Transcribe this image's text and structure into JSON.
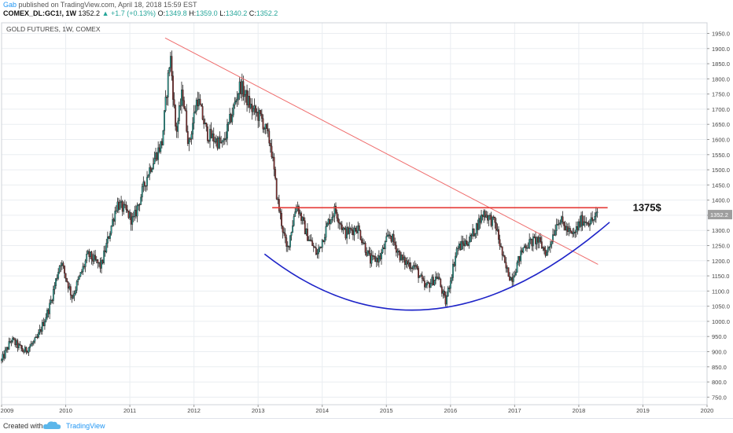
{
  "header": {
    "author": "Gab",
    "published": "published on TradingView.com, April 18, 2018 15:59 EST",
    "symbol": "COMEX_DL:GC1!, 1W",
    "last": "1352.2",
    "change": "+1.7 (+0.13%)",
    "open_label": "O:",
    "open": "1349.8",
    "high_label": "H:",
    "high": "1359.0",
    "low_label": "L:",
    "low": "1340.2",
    "close_label": "C:",
    "close": "1352.2"
  },
  "footer": {
    "created_with": "Created with",
    "brand": "TradingView"
  },
  "chart_data": {
    "type": "candlestick",
    "title": "GOLD FUTURES, 1W, COMEX",
    "x_ticks": [
      "2009",
      "2010",
      "2011",
      "2012",
      "2013",
      "2014",
      "2015",
      "2016",
      "2017",
      "2018",
      "2019",
      "2020"
    ],
    "x_range": [
      2009.0,
      2020.0
    ],
    "y_range": [
      725,
      1985
    ],
    "y_ticks": [
      750,
      800,
      850,
      900,
      950,
      1000,
      1050,
      1100,
      1150,
      1200,
      1250,
      1300,
      1350,
      1400,
      1450,
      1500,
      1550,
      1600,
      1650,
      1700,
      1750,
      1800,
      1850,
      1900,
      1950
    ],
    "y_tick_labels": [
      "750.0",
      "800.0",
      "850.0",
      "900.0",
      "950.0",
      "1000.0",
      "1050.0",
      "1100.0",
      "1150.0",
      "1200.0",
      "1250.0",
      "1300.0",
      "1350.0",
      "1400.0",
      "1450.0",
      "1500.0",
      "1550.0",
      "1600.0",
      "1650.0",
      "1700.0",
      "1750.0",
      "1800.0",
      "1850.0",
      "1900.0",
      "1950.0"
    ],
    "price_path": [
      [
        2009.0,
        870
      ],
      [
        2009.15,
        940
      ],
      [
        2009.35,
        900
      ],
      [
        2009.55,
        940
      ],
      [
        2009.75,
        1050
      ],
      [
        2009.92,
        1200
      ],
      [
        2010.1,
        1080
      ],
      [
        2010.35,
        1220
      ],
      [
        2010.55,
        1180
      ],
      [
        2010.8,
        1390
      ],
      [
        2010.95,
        1360
      ],
      [
        2011.05,
        1330
      ],
      [
        2011.3,
        1500
      ],
      [
        2011.5,
        1590
      ],
      [
        2011.63,
        1880
      ],
      [
        2011.72,
        1620
      ],
      [
        2011.82,
        1760
      ],
      [
        2011.92,
        1580
      ],
      [
        2012.05,
        1740
      ],
      [
        2012.2,
        1620
      ],
      [
        2012.45,
        1580
      ],
      [
        2012.72,
        1780
      ],
      [
        2012.9,
        1700
      ],
      [
        2013.05,
        1670
      ],
      [
        2013.2,
        1580
      ],
      [
        2013.3,
        1400
      ],
      [
        2013.45,
        1230
      ],
      [
        2013.6,
        1390
      ],
      [
        2013.75,
        1290
      ],
      [
        2013.92,
        1220
      ],
      [
        2014.1,
        1330
      ],
      [
        2014.2,
        1370
      ],
      [
        2014.35,
        1290
      ],
      [
        2014.55,
        1310
      ],
      [
        2014.75,
        1200
      ],
      [
        2014.9,
        1210
      ],
      [
        2015.05,
        1290
      ],
      [
        2015.25,
        1200
      ],
      [
        2015.45,
        1180
      ],
      [
        2015.6,
        1110
      ],
      [
        2015.8,
        1150
      ],
      [
        2015.92,
        1060
      ],
      [
        2016.1,
        1240
      ],
      [
        2016.3,
        1270
      ],
      [
        2016.52,
        1360
      ],
      [
        2016.7,
        1320
      ],
      [
        2016.85,
        1180
      ],
      [
        2016.95,
        1140
      ],
      [
        2017.15,
        1250
      ],
      [
        2017.35,
        1270
      ],
      [
        2017.5,
        1225
      ],
      [
        2017.68,
        1340
      ],
      [
        2017.9,
        1280
      ],
      [
        2018.05,
        1335
      ],
      [
        2018.2,
        1330
      ],
      [
        2018.3,
        1352
      ]
    ],
    "last_price": 1352.2,
    "last_price_label": "1352.2",
    "resistance": {
      "level": 1375,
      "x_start": 2013.22,
      "x_end": 2018.45,
      "label": "1375$"
    },
    "trendline": {
      "from": [
        2011.55,
        1935
      ],
      "to": [
        2018.3,
        1188
      ]
    },
    "support_curve": {
      "from": [
        2013.1,
        1222
      ],
      "bottom": [
        2015.7,
        1040
      ],
      "to": [
        2018.48,
        1327
      ]
    },
    "colors": {
      "up": "#26a69a",
      "down": "#8b2e2e",
      "wick": "#222222",
      "resistance": "#e53935",
      "trendline": "#ef6c6c",
      "support": "#1e24c8",
      "grid": "#eaedf1",
      "price_tag": "#9e9e9e"
    },
    "grid": true
  }
}
